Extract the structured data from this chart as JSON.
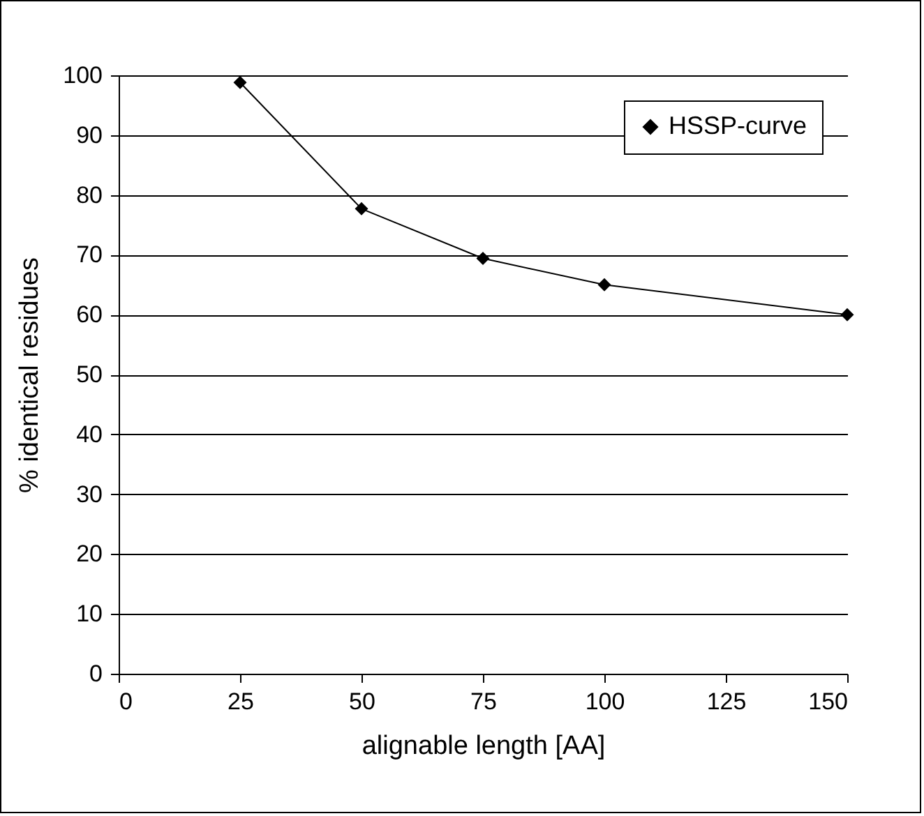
{
  "chart_data": {
    "type": "line",
    "xlabel": "alignable length [AA]",
    "ylabel": "% identical residues",
    "x": [
      25,
      50,
      75,
      100,
      150
    ],
    "series": [
      {
        "name": "HSSP-curve",
        "color": "#000000",
        "values": [
          98.8,
          77.7,
          69.4,
          65,
          60
        ]
      }
    ],
    "xlim": [
      0,
      150
    ],
    "xticks": [
      0,
      25,
      50,
      75,
      100,
      125,
      150
    ],
    "ylim": [
      0,
      100
    ],
    "yticks": [
      0,
      10,
      20,
      30,
      40,
      50,
      60,
      70,
      80,
      90,
      100
    ],
    "grid": "y",
    "legend": "top right",
    "marker": "diamond",
    "line_style": "solid"
  }
}
